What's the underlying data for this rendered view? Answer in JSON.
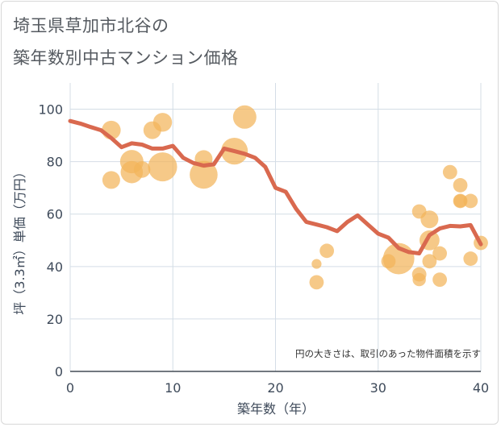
{
  "title": {
    "line1": "埼玉県草加市北谷の",
    "line2": "築年数別中古マンション価格"
  },
  "chart_data": {
    "type": "scatter",
    "xlabel": "築年数（年）",
    "ylabel": "坪（3.3㎡）単価（万円）",
    "xlim": [
      0,
      40
    ],
    "ylim": [
      0,
      110
    ],
    "xticks": [
      "0",
      "10",
      "20",
      "30",
      "40"
    ],
    "yticks": [
      "0",
      "20",
      "40",
      "60",
      "80",
      "100"
    ],
    "grid": true,
    "note": "円の大きさは、取引のあった物件面積を示す",
    "colors": {
      "bubble": "#f2b45a",
      "line": "#d9694f",
      "grid": "#d4dde6"
    },
    "bubbles": [
      {
        "x": 4,
        "y": 92,
        "size": 0.55
      },
      {
        "x": 4,
        "y": 73,
        "size": 0.5
      },
      {
        "x": 6,
        "y": 80,
        "size": 0.75
      },
      {
        "x": 6,
        "y": 76,
        "size": 0.7
      },
      {
        "x": 7,
        "y": 77,
        "size": 0.45
      },
      {
        "x": 8,
        "y": 92,
        "size": 0.5
      },
      {
        "x": 9,
        "y": 95,
        "size": 0.55
      },
      {
        "x": 9,
        "y": 78,
        "size": 1.0
      },
      {
        "x": 13,
        "y": 81,
        "size": 0.5
      },
      {
        "x": 13,
        "y": 75,
        "size": 0.95
      },
      {
        "x": 16,
        "y": 84,
        "size": 0.9
      },
      {
        "x": 17,
        "y": 97,
        "size": 0.75
      },
      {
        "x": 24,
        "y": 41,
        "size": 0.15
      },
      {
        "x": 24,
        "y": 34,
        "size": 0.35
      },
      {
        "x": 25,
        "y": 46,
        "size": 0.35
      },
      {
        "x": 31,
        "y": 42,
        "size": 0.35
      },
      {
        "x": 32,
        "y": 43,
        "size": 1.1
      },
      {
        "x": 34,
        "y": 61,
        "size": 0.35
      },
      {
        "x": 34,
        "y": 37,
        "size": 0.35
      },
      {
        "x": 34,
        "y": 35,
        "size": 0.3
      },
      {
        "x": 35,
        "y": 58,
        "size": 0.5
      },
      {
        "x": 35,
        "y": 50,
        "size": 0.6
      },
      {
        "x": 35,
        "y": 42,
        "size": 0.35
      },
      {
        "x": 36,
        "y": 45,
        "size": 0.35
      },
      {
        "x": 36,
        "y": 35,
        "size": 0.35
      },
      {
        "x": 37,
        "y": 76,
        "size": 0.35
      },
      {
        "x": 38,
        "y": 71,
        "size": 0.35
      },
      {
        "x": 38,
        "y": 65,
        "size": 0.35
      },
      {
        "x": 38,
        "y": 65,
        "size": 0.3
      },
      {
        "x": 39,
        "y": 65,
        "size": 0.35
      },
      {
        "x": 39,
        "y": 43,
        "size": 0.35
      },
      {
        "x": 40,
        "y": 49,
        "size": 0.35
      }
    ],
    "trend": {
      "x": [
        0,
        1,
        2,
        3,
        4,
        5,
        6,
        7,
        8,
        9,
        10,
        11,
        12,
        13,
        14,
        15,
        16,
        17,
        18,
        19,
        20,
        21,
        22,
        23,
        24,
        25,
        26,
        27,
        28,
        29,
        30,
        31,
        32,
        33,
        34,
        35,
        36,
        37,
        38,
        39,
        40
      ],
      "y": [
        95.5,
        94.5,
        93.2,
        92,
        89,
        85.5,
        87,
        86.5,
        85,
        85,
        86,
        81.5,
        79.5,
        78.5,
        79,
        85,
        84,
        83,
        81.5,
        78,
        70,
        68.5,
        62,
        57,
        56,
        55,
        53.5,
        57,
        59.5,
        56,
        52.5,
        51,
        47,
        45.5,
        45,
        52,
        54.5,
        55.5,
        55.3,
        55.8,
        48.5
      ]
    }
  }
}
